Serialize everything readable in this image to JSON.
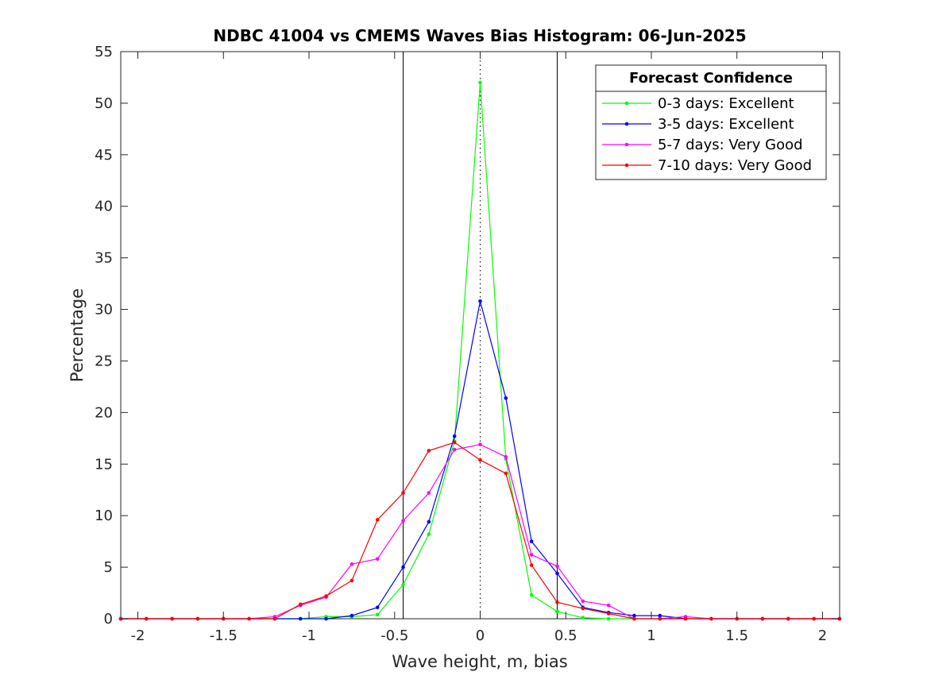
{
  "chart_data": {
    "type": "line",
    "title": "NDBC 41004 vs CMEMS Waves Bias Histogram: 06-Jun-2025",
    "xlabel": "Wave height, m, bias",
    "ylabel": "Percentage",
    "xlim": [
      -2.1,
      2.1
    ],
    "ylim": [
      0,
      55
    ],
    "x_ticks": [
      -2,
      -1.5,
      -1,
      -0.5,
      0,
      0.5,
      1,
      1.5,
      2
    ],
    "x_tick_labels": [
      "-2",
      "-1.5",
      "-1",
      "-0.5",
      "0",
      "0.5",
      "1",
      "1.5",
      "2"
    ],
    "y_ticks": [
      0,
      5,
      10,
      15,
      20,
      25,
      30,
      35,
      40,
      45,
      50,
      55
    ],
    "y_tick_labels": [
      "0",
      "5",
      "10",
      "15",
      "20",
      "25",
      "30",
      "35",
      "40",
      "45",
      "50",
      "55"
    ],
    "grid": false,
    "reference_lines": [
      {
        "x": -0.45,
        "style": "solid",
        "color": "#000000"
      },
      {
        "x": 0.45,
        "style": "solid",
        "color": "#000000"
      },
      {
        "x": 0,
        "style": "dotted",
        "color": "#000000"
      }
    ],
    "legend": {
      "title": "Forecast Confidence",
      "placement": "top-right"
    },
    "x": [
      -2.1,
      -1.95,
      -1.8,
      -1.65,
      -1.5,
      -1.35,
      -1.2,
      -1.05,
      -0.9,
      -0.75,
      -0.6,
      -0.45,
      -0.3,
      -0.15,
      0,
      0.15,
      0.3,
      0.45,
      0.6,
      0.75,
      0.9,
      1.05,
      1.2,
      1.35,
      1.5,
      1.65,
      1.8,
      1.95,
      2.1
    ],
    "series": [
      {
        "name": "0-3 days: Excellent",
        "color": "#00ff00",
        "values": [
          0,
          0,
          0,
          0,
          0,
          0,
          0,
          0,
          0.2,
          0.2,
          0.4,
          3.3,
          8.2,
          17.2,
          52.0,
          15.5,
          2.3,
          0.7,
          0.1,
          0,
          0,
          0,
          0,
          0,
          0,
          0,
          0,
          0,
          0
        ]
      },
      {
        "name": "3-5 days: Excellent",
        "color": "#0000ff",
        "values": [
          0,
          0,
          0,
          0,
          0,
          0,
          0,
          0,
          0,
          0.3,
          1.1,
          5.0,
          9.4,
          17.7,
          30.8,
          21.4,
          7.5,
          4.4,
          1.1,
          0.6,
          0.3,
          0.3,
          0,
          0,
          0,
          0,
          0,
          0,
          0
        ]
      },
      {
        "name": "5-7 days: Very Good",
        "color": "#ff00ff",
        "values": [
          0,
          0,
          0,
          0,
          0,
          0,
          0.2,
          1.3,
          2.1,
          5.3,
          5.8,
          9.5,
          12.2,
          16.4,
          16.9,
          15.7,
          6.2,
          5.1,
          1.7,
          1.3,
          0,
          0,
          0.2,
          0,
          0,
          0,
          0,
          0,
          0
        ]
      },
      {
        "name": "7-10 days: Very Good",
        "color": "#ff0000",
        "values": [
          0,
          0,
          0,
          0,
          0,
          0,
          0,
          1.4,
          2.2,
          3.7,
          9.6,
          12.2,
          16.3,
          17.1,
          15.4,
          14.1,
          5.2,
          1.6,
          1.0,
          0.5,
          0,
          0,
          0,
          0,
          0,
          0,
          0,
          0,
          0
        ]
      }
    ]
  }
}
